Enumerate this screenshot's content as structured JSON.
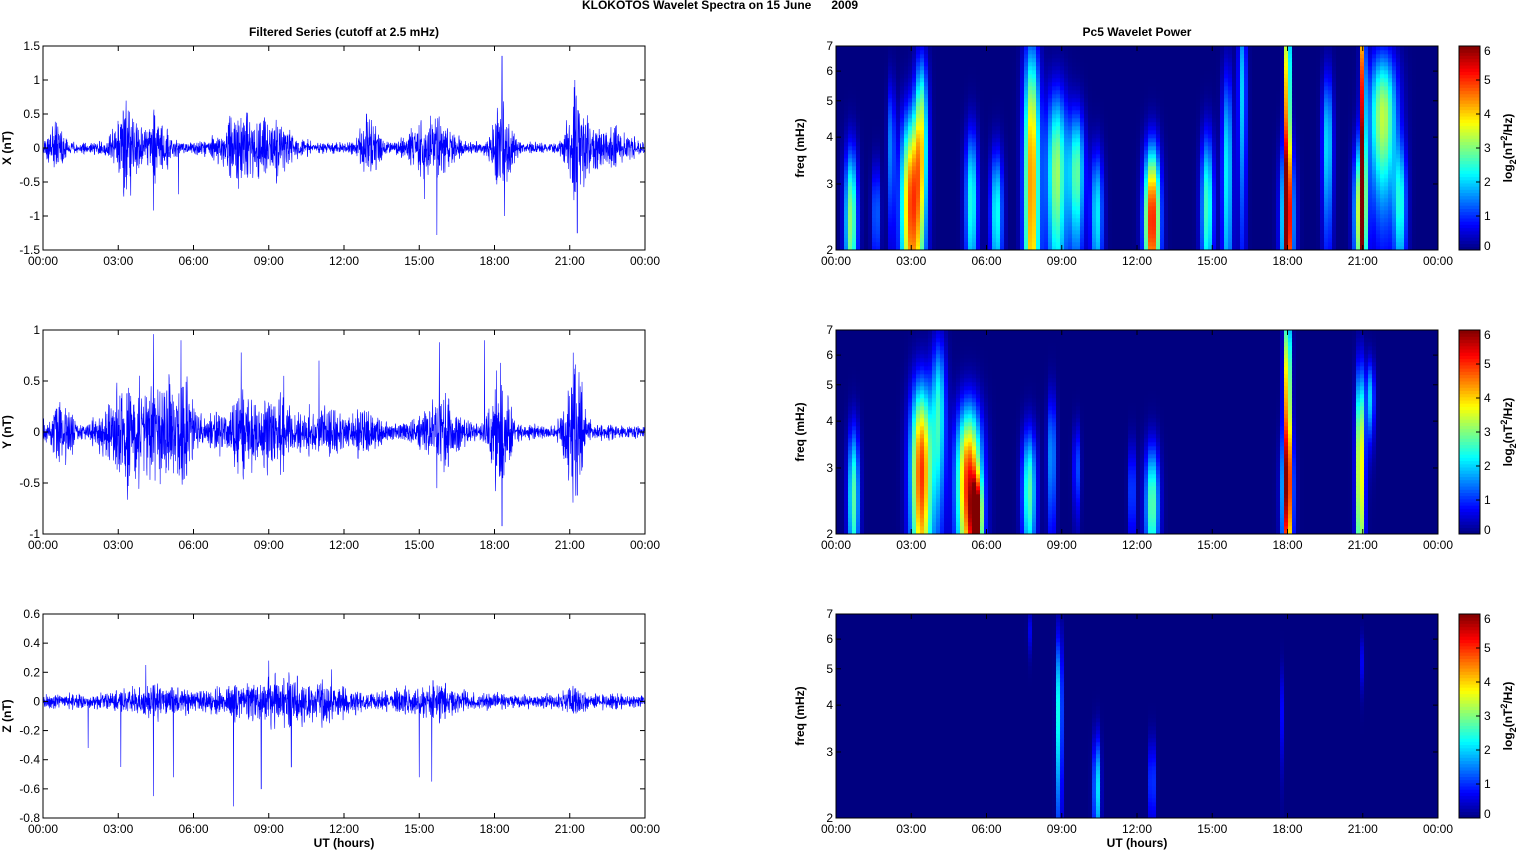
{
  "figure": {
    "suptitle": "KLOKOTOS Wavelet Spectra on 15 June      2009",
    "left_title": "Filtered Series (cutoff at 2.5 mHz)",
    "right_title": "Pc5 Wavelet Power"
  },
  "colors": {
    "series": "#0000ff",
    "axis": "#000000",
    "background": "#ffffff"
  },
  "colormap": "jet",
  "chart_data": [
    {
      "type": "line",
      "panel": "time-series-x",
      "title": "Filtered Series (cutoff at 2.5 mHz)",
      "xlabel": "",
      "ylabel": "X (nT)",
      "xlim": [
        0,
        24
      ],
      "ylim": [
        -1.5,
        1.5
      ],
      "xtick_labels": [
        "00:00",
        "03:00",
        "06:00",
        "09:00",
        "12:00",
        "15:00",
        "18:00",
        "21:00",
        "00:00"
      ],
      "yticks": [
        -1.5,
        -1,
        -0.5,
        0,
        0.5,
        1,
        1.5
      ],
      "ytick_labels": [
        "-1.5",
        "-1",
        "-0.5",
        "0",
        "0.5",
        "1",
        "1.5"
      ],
      "baseline_amplitude": 0.06,
      "activity": [
        {
          "t": 0.5,
          "w": 0.4,
          "a": 0.2
        },
        {
          "t": 3.3,
          "w": 0.5,
          "a": 0.4
        },
        {
          "t": 4.5,
          "w": 0.6,
          "a": 0.25
        },
        {
          "t": 7.8,
          "w": 0.8,
          "a": 0.3
        },
        {
          "t": 9.2,
          "w": 0.8,
          "a": 0.25
        },
        {
          "t": 13.0,
          "w": 0.4,
          "a": 0.3
        },
        {
          "t": 15.5,
          "w": 0.8,
          "a": 0.35
        },
        {
          "t": 18.3,
          "w": 0.4,
          "a": 0.5
        },
        {
          "t": 21.3,
          "w": 0.4,
          "a": 0.55
        },
        {
          "t": 22.5,
          "w": 1.0,
          "a": 0.2
        }
      ],
      "spikes": [
        {
          "t": 3.2,
          "v": 0.52
        },
        {
          "t": 3.4,
          "v": 0.55
        },
        {
          "t": 3.5,
          "v": -0.7
        },
        {
          "t": 4.4,
          "v": -0.92
        },
        {
          "t": 5.4,
          "v": -0.68
        },
        {
          "t": 7.8,
          "v": -0.6
        },
        {
          "t": 8.8,
          "v": 0.4
        },
        {
          "t": 12.9,
          "v": 0.5
        },
        {
          "t": 15.2,
          "v": -0.75
        },
        {
          "t": 15.7,
          "v": -1.28
        },
        {
          "t": 18.3,
          "v": 1.35
        },
        {
          "t": 18.4,
          "v": -1.0
        },
        {
          "t": 21.2,
          "v": 1.0
        },
        {
          "t": 21.3,
          "v": -1.25
        }
      ]
    },
    {
      "type": "line",
      "panel": "time-series-y",
      "title": "",
      "xlabel": "",
      "ylabel": "Y (nT)",
      "xlim": [
        0,
        24
      ],
      "ylim": [
        -1,
        1
      ],
      "xtick_labels": [
        "00:00",
        "03:00",
        "06:00",
        "09:00",
        "12:00",
        "15:00",
        "18:00",
        "21:00",
        "00:00"
      ],
      "yticks": [
        -1,
        -0.5,
        0,
        0.5,
        1
      ],
      "ytick_labels": [
        "-1",
        "-0.5",
        "0",
        "0.5",
        "1"
      ],
      "baseline_amplitude": 0.05,
      "activity": [
        {
          "t": 0.7,
          "w": 0.5,
          "a": 0.2
        },
        {
          "t": 3.5,
          "w": 1.0,
          "a": 0.35
        },
        {
          "t": 5.3,
          "w": 0.8,
          "a": 0.35
        },
        {
          "t": 7.7,
          "w": 0.8,
          "a": 0.2
        },
        {
          "t": 9.3,
          "w": 1.0,
          "a": 0.2
        },
        {
          "t": 11.3,
          "w": 0.8,
          "a": 0.12
        },
        {
          "t": 12.9,
          "w": 0.5,
          "a": 0.15
        },
        {
          "t": 15.8,
          "w": 0.8,
          "a": 0.2
        },
        {
          "t": 18.2,
          "w": 0.4,
          "a": 0.45
        },
        {
          "t": 21.2,
          "w": 0.4,
          "a": 0.4
        }
      ],
      "spikes": [
        {
          "t": 3.4,
          "v": -0.53
        },
        {
          "t": 4.4,
          "v": 0.96
        },
        {
          "t": 5.5,
          "v": 0.9
        },
        {
          "t": 7.9,
          "v": 0.78
        },
        {
          "t": 9.6,
          "v": 0.55
        },
        {
          "t": 11.0,
          "v": 0.7
        },
        {
          "t": 15.8,
          "v": 0.88
        },
        {
          "t": 15.7,
          "v": -0.55
        },
        {
          "t": 17.6,
          "v": 0.9
        },
        {
          "t": 18.3,
          "v": -0.92
        },
        {
          "t": 21.2,
          "v": 0.62
        },
        {
          "t": 21.3,
          "v": -0.62
        }
      ]
    },
    {
      "type": "line",
      "panel": "time-series-z",
      "title": "",
      "xlabel": "UT (hours)",
      "ylabel": "Z (nT)",
      "xlim": [
        0,
        24
      ],
      "ylim": [
        -0.8,
        0.6
      ],
      "xtick_labels": [
        "00:00",
        "03:00",
        "06:00",
        "09:00",
        "12:00",
        "15:00",
        "18:00",
        "21:00",
        "00:00"
      ],
      "yticks": [
        -0.8,
        -0.6,
        -0.4,
        -0.2,
        0,
        0.2,
        0.4,
        0.6
      ],
      "ytick_labels": [
        "-0.8",
        "-0.6",
        "-0.4",
        "-0.2",
        "0",
        "0.2",
        "0.4",
        "0.6"
      ],
      "baseline_amplitude": 0.035,
      "activity": [
        {
          "t": 4.5,
          "w": 1.5,
          "a": 0.05
        },
        {
          "t": 9.0,
          "w": 2.0,
          "a": 0.07
        },
        {
          "t": 11.0,
          "w": 1.5,
          "a": 0.05
        },
        {
          "t": 15.5,
          "w": 1.5,
          "a": 0.05
        },
        {
          "t": 21.2,
          "w": 0.5,
          "a": 0.04
        }
      ],
      "spikes": [
        {
          "t": 1.8,
          "v": -0.32
        },
        {
          "t": 3.1,
          "v": -0.45
        },
        {
          "t": 4.1,
          "v": 0.25
        },
        {
          "t": 4.4,
          "v": -0.65
        },
        {
          "t": 5.2,
          "v": -0.52
        },
        {
          "t": 7.6,
          "v": -0.72
        },
        {
          "t": 8.7,
          "v": -0.6
        },
        {
          "t": 9.9,
          "v": -0.45
        },
        {
          "t": 15.0,
          "v": -0.52
        },
        {
          "t": 15.5,
          "v": -0.55
        },
        {
          "t": 9.0,
          "v": 0.28
        },
        {
          "t": 11.5,
          "v": 0.22
        }
      ]
    },
    {
      "type": "heatmap",
      "panel": "wavelet-x",
      "title": "Pc5 Wavelet Power",
      "xlabel": "",
      "ylabel": "freq (mHz)",
      "xlim": [
        0,
        24
      ],
      "ylim": [
        2,
        7
      ],
      "yscale": "log",
      "xtick_labels": [
        "00:00",
        "03:00",
        "06:00",
        "09:00",
        "12:00",
        "15:00",
        "18:00",
        "21:00",
        "00:00"
      ],
      "yticks": [
        2,
        3,
        4,
        5,
        6,
        7
      ],
      "ytick_labels": [
        "2",
        "3",
        "4",
        "5",
        "6",
        "7"
      ],
      "colorbar": {
        "label": "log2(nT^2/Hz)",
        "ticks": [
          0,
          1,
          2,
          3,
          4,
          5,
          6
        ],
        "range": [
          0,
          6
        ]
      },
      "blobs": [
        {
          "t": 0.6,
          "f": 2.4,
          "dt": 0.18,
          "df": 0.9,
          "p": 3.2
        },
        {
          "t": 1.6,
          "f": 2.5,
          "dt": 0.12,
          "df": 0.6,
          "p": 1.5
        },
        {
          "t": 2.2,
          "f": 3.8,
          "dt": 0.1,
          "df": 1.2,
          "p": 1.6
        },
        {
          "t": 3.0,
          "f": 2.6,
          "dt": 0.3,
          "df": 1.3,
          "p": 4.8
        },
        {
          "t": 3.4,
          "f": 4.2,
          "dt": 0.18,
          "df": 1.6,
          "p": 3.0
        },
        {
          "t": 5.4,
          "f": 2.7,
          "dt": 0.18,
          "df": 1.0,
          "p": 2.5
        },
        {
          "t": 6.4,
          "f": 2.5,
          "dt": 0.18,
          "df": 0.8,
          "p": 2.4
        },
        {
          "t": 7.8,
          "f": 3.0,
          "dt": 0.22,
          "df": 2.6,
          "p": 4.5
        },
        {
          "t": 8.8,
          "f": 3.2,
          "dt": 0.3,
          "df": 1.4,
          "p": 3.2
        },
        {
          "t": 9.6,
          "f": 3.2,
          "dt": 0.22,
          "df": 1.0,
          "p": 2.8
        },
        {
          "t": 10.4,
          "f": 2.5,
          "dt": 0.18,
          "df": 0.8,
          "p": 2.2
        },
        {
          "t": 12.6,
          "f": 2.4,
          "dt": 0.22,
          "df": 0.9,
          "p": 5.3
        },
        {
          "t": 14.8,
          "f": 2.6,
          "dt": 0.18,
          "df": 1.0,
          "p": 2.7
        },
        {
          "t": 15.6,
          "f": 3.2,
          "dt": 0.15,
          "df": 1.8,
          "p": 2.3
        },
        {
          "t": 16.2,
          "f": 5.2,
          "dt": 0.12,
          "df": 2.5,
          "p": 2.0
        },
        {
          "t": 18.0,
          "f": 2.4,
          "dt": 0.2,
          "df": 1.0,
          "p": 3.2
        },
        {
          "t": 18.0,
          "f": 4.2,
          "dt": 0.08,
          "df": 4.0,
          "p": 5.6
        },
        {
          "t": 19.6,
          "f": 3.8,
          "dt": 0.15,
          "df": 1.4,
          "p": 2.2
        },
        {
          "t": 20.9,
          "f": 2.5,
          "dt": 0.18,
          "df": 0.9,
          "p": 3.6
        },
        {
          "t": 21.0,
          "f": 4.5,
          "dt": 0.07,
          "df": 4.0,
          "p": 5.4
        },
        {
          "t": 21.8,
          "f": 4.5,
          "dt": 0.4,
          "df": 1.5,
          "p": 3.4
        },
        {
          "t": 22.5,
          "f": 2.6,
          "dt": 0.18,
          "df": 0.8,
          "p": 2.2
        }
      ]
    },
    {
      "type": "heatmap",
      "panel": "wavelet-y",
      "title": "",
      "xlabel": "",
      "ylabel": "freq (mHz)",
      "xlim": [
        0,
        24
      ],
      "ylim": [
        2,
        7
      ],
      "yscale": "log",
      "xtick_labels": [
        "00:00",
        "03:00",
        "06:00",
        "09:00",
        "12:00",
        "15:00",
        "18:00",
        "21:00",
        "00:00"
      ],
      "yticks": [
        2,
        3,
        4,
        5,
        6,
        7
      ],
      "ytick_labels": [
        "2",
        "3",
        "4",
        "5",
        "6",
        "7"
      ],
      "colorbar": {
        "label": "log2(nT^2/Hz)",
        "ticks": [
          0,
          1,
          2,
          3,
          4,
          5,
          6
        ],
        "range": [
          0,
          6
        ]
      },
      "blobs": [
        {
          "t": 0.7,
          "f": 2.5,
          "dt": 0.16,
          "df": 0.9,
          "p": 2.8
        },
        {
          "t": 3.4,
          "f": 2.9,
          "dt": 0.3,
          "df": 1.4,
          "p": 5.0
        },
        {
          "t": 4.1,
          "f": 4.2,
          "dt": 0.2,
          "df": 1.6,
          "p": 2.4
        },
        {
          "t": 5.3,
          "f": 2.7,
          "dt": 0.35,
          "df": 1.1,
          "p": 5.2
        },
        {
          "t": 5.6,
          "f": 2.2,
          "dt": 0.15,
          "df": 0.4,
          "p": 4.5
        },
        {
          "t": 7.7,
          "f": 2.6,
          "dt": 0.2,
          "df": 0.8,
          "p": 2.8
        },
        {
          "t": 8.6,
          "f": 3.2,
          "dt": 0.12,
          "df": 1.0,
          "p": 1.8
        },
        {
          "t": 9.6,
          "f": 3.0,
          "dt": 0.1,
          "df": 0.6,
          "p": 1.3
        },
        {
          "t": 11.8,
          "f": 2.6,
          "dt": 0.1,
          "df": 0.6,
          "p": 1.4
        },
        {
          "t": 12.6,
          "f": 2.4,
          "dt": 0.2,
          "df": 0.7,
          "p": 2.9
        },
        {
          "t": 18.0,
          "f": 2.6,
          "dt": 0.18,
          "df": 0.8,
          "p": 2.6
        },
        {
          "t": 18.0,
          "f": 4.2,
          "dt": 0.1,
          "df": 2.8,
          "p": 5.0
        },
        {
          "t": 20.9,
          "f": 3.0,
          "dt": 0.12,
          "df": 1.6,
          "p": 4.4
        },
        {
          "t": 21.3,
          "f": 4.6,
          "dt": 0.12,
          "df": 0.8,
          "p": 2.0
        }
      ]
    },
    {
      "type": "heatmap",
      "panel": "wavelet-z",
      "title": "",
      "xlabel": "UT (hours)",
      "ylabel": "freq (mHz)",
      "xlim": [
        0,
        24
      ],
      "ylim": [
        2,
        7
      ],
      "yscale": "log",
      "xtick_labels": [
        "00:00",
        "03:00",
        "06:00",
        "09:00",
        "12:00",
        "15:00",
        "18:00",
        "21:00",
        "00:00"
      ],
      "yticks": [
        2,
        3,
        4,
        5,
        6,
        7
      ],
      "ytick_labels": [
        "2",
        "3",
        "4",
        "5",
        "6",
        "7"
      ],
      "colorbar": {
        "label": "log2(nT^2/Hz)",
        "ticks": [
          0,
          1,
          2,
          3,
          4,
          5,
          6
        ],
        "range": [
          0,
          6
        ]
      },
      "blobs": [
        {
          "t": 7.7,
          "f": 6.3,
          "dt": 0.05,
          "df": 0.6,
          "p": 0.8
        },
        {
          "t": 8.9,
          "f": 3.8,
          "dt": 0.08,
          "df": 1.5,
          "p": 2.8
        },
        {
          "t": 10.4,
          "f": 2.4,
          "dt": 0.1,
          "df": 0.6,
          "p": 2.3
        },
        {
          "t": 12.6,
          "f": 2.5,
          "dt": 0.08,
          "df": 0.5,
          "p": 1.6
        },
        {
          "t": 17.8,
          "f": 3.8,
          "dt": 0.05,
          "df": 0.8,
          "p": 0.8
        },
        {
          "t": 21.0,
          "f": 5.2,
          "dt": 0.05,
          "df": 0.6,
          "p": 0.8
        }
      ]
    }
  ]
}
